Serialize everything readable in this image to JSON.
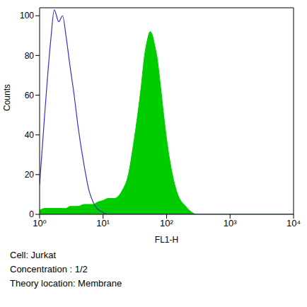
{
  "chart_data": {
    "type": "histogram",
    "x_label": "FL1-H",
    "y_label": "Counts",
    "log": "x",
    "x": [
      1,
      1.2,
      1.5,
      1.7,
      2,
      2.3,
      2.6,
      3,
      3.5,
      4,
      5,
      6,
      7,
      8,
      10,
      12,
      15,
      20,
      25,
      30,
      35,
      40,
      45,
      50,
      55,
      60,
      65,
      70,
      80,
      90,
      100,
      120,
      150,
      200,
      250,
      300,
      500,
      1000,
      3000,
      10000
    ],
    "series": [
      {
        "type": "area",
        "color": "#00cc00",
        "values": [
          2,
          3,
          3,
          3,
          3,
          3,
          3,
          4,
          4,
          4,
          5,
          5,
          5,
          6,
          7,
          8,
          8,
          12,
          20,
          35,
          50,
          65,
          80,
          88,
          92,
          90,
          85,
          80,
          65,
          50,
          38,
          22,
          10,
          4,
          1,
          0,
          0,
          0,
          0,
          0
        ]
      },
      {
        "type": "line",
        "color": "#3333cc",
        "values": [
          15,
          50,
          88,
          103,
          97,
          100,
          90,
          75,
          60,
          45,
          25,
          12,
          6,
          3,
          1,
          0,
          0,
          0,
          0,
          0,
          0,
          0,
          0,
          0,
          0,
          0,
          0,
          0,
          0,
          0,
          0,
          0,
          0,
          0,
          0,
          0,
          0,
          0,
          0,
          0
        ]
      }
    ],
    "xlim": [
      1,
      10000
    ],
    "xticks": [
      {
        "value": 1,
        "label": "10⁰"
      },
      {
        "value": 10,
        "label": "10¹"
      },
      {
        "value": 100,
        "label": "10²"
      },
      {
        "value": 1000,
        "label": "10³"
      },
      {
        "value": 10000,
        "label": "10⁴"
      }
    ],
    "ylim": [
      0,
      104
    ],
    "yticks": [
      0,
      20,
      40,
      60,
      80,
      100
    ],
    "grid": false,
    "annotations": [
      "Cell: Jurkat",
      "Concentration : 1/2",
      "Theory location: Membrane"
    ]
  }
}
